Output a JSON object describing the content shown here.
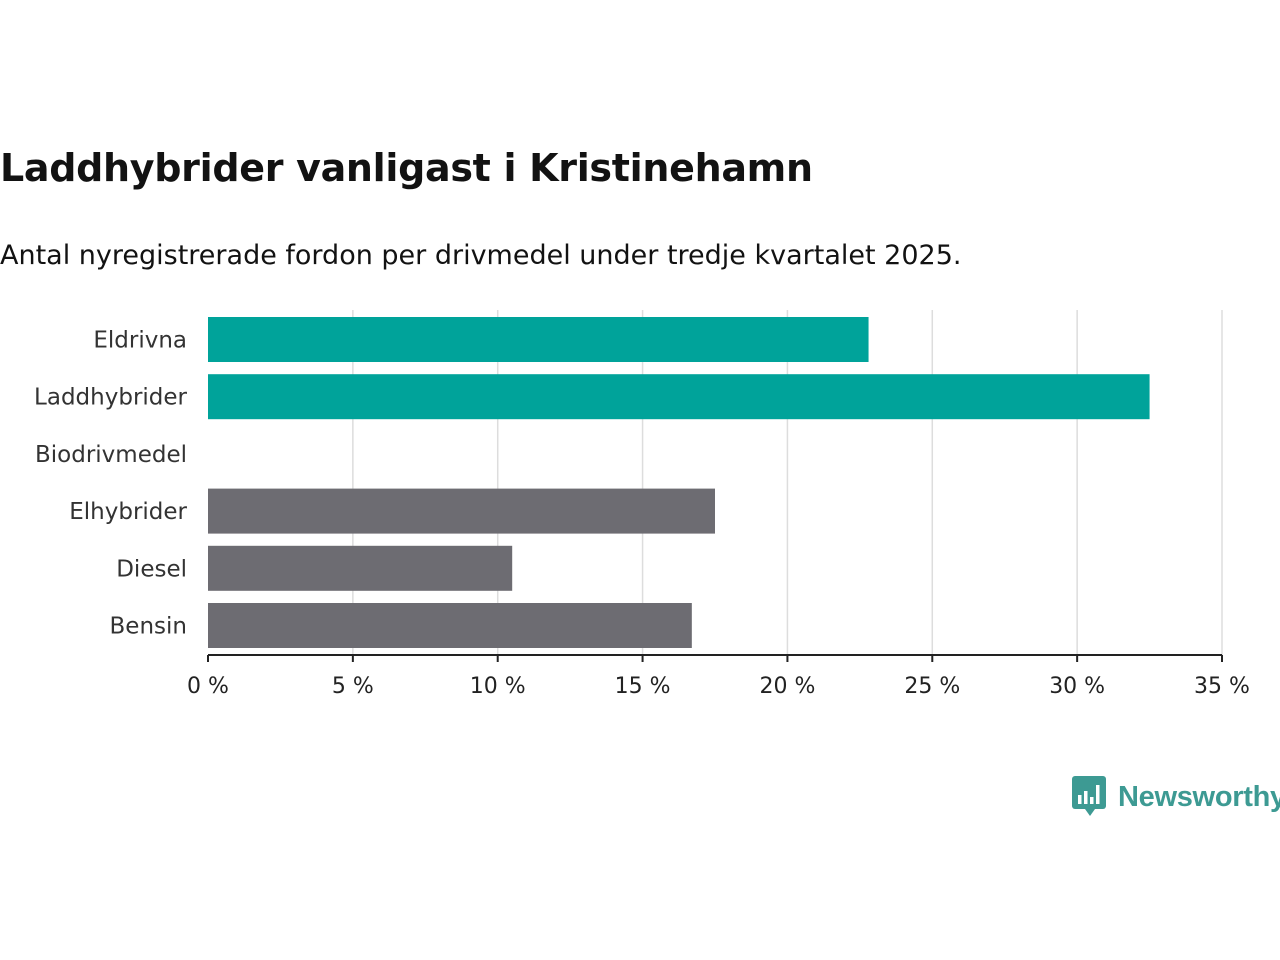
{
  "chart_data": {
    "type": "bar",
    "orientation": "horizontal",
    "title": "Laddhybrider vanligast i Kristinehamn",
    "subtitle": "Antal nyregistrerade fordon per drivmedel under tredje kvartalet 2025.",
    "categories": [
      "Eldrivna",
      "Laddhybrider",
      "Biodrivmedel",
      "Elhybrider",
      "Diesel",
      "Bensin"
    ],
    "values": [
      22.8,
      32.5,
      0,
      17.5,
      10.5,
      16.7
    ],
    "colors": [
      "#00a39a",
      "#00a39a",
      "#6d6c72",
      "#6d6c72",
      "#6d6c72",
      "#6d6c72"
    ],
    "xlim": [
      0,
      35
    ],
    "xticks": [
      0,
      5,
      10,
      15,
      20,
      25,
      30,
      35
    ],
    "tick_labels": [
      "0 %",
      "5 %",
      "10 %",
      "15 %",
      "20 %",
      "25 %",
      "30 %",
      "35 %"
    ],
    "xlabel": "",
    "ylabel": "",
    "grid": true
  },
  "brand": {
    "name": "Newsworthy",
    "color": "#3d9a93"
  }
}
